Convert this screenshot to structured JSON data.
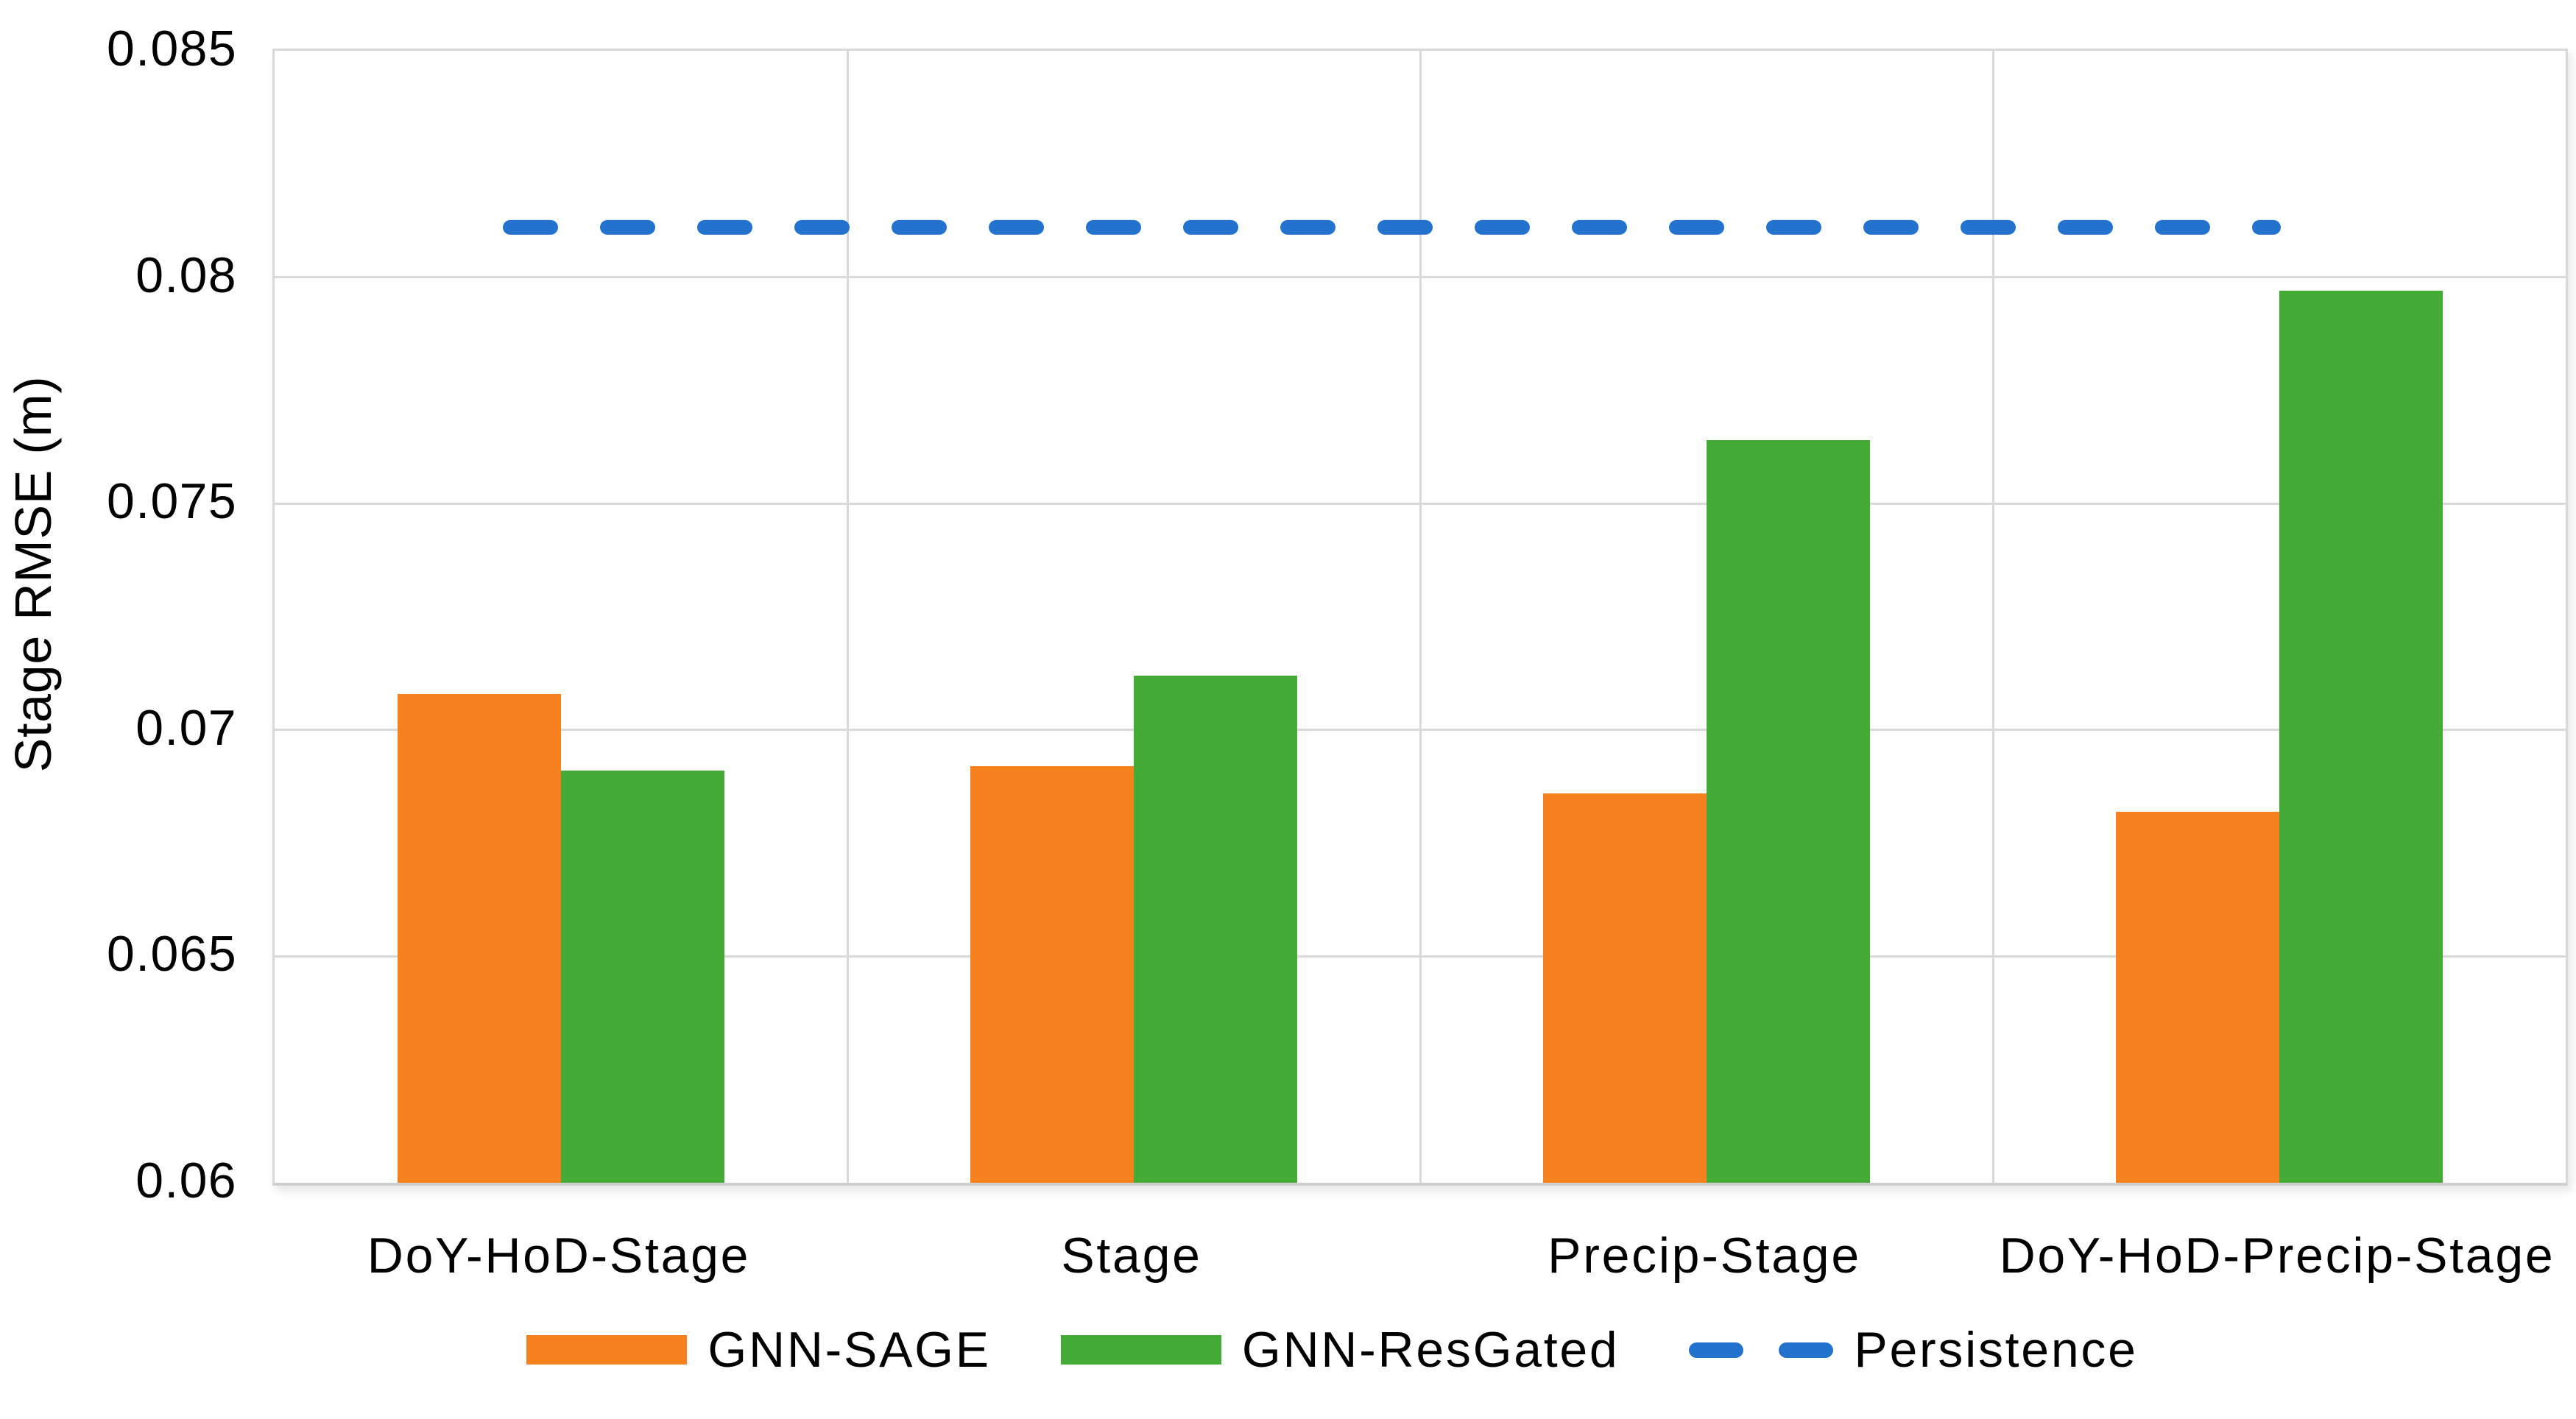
{
  "chart_data": {
    "type": "bar",
    "title": "",
    "categories": [
      "DoY-HoD-Stage",
      "Stage",
      "Precip-Stage",
      "DoY-HoD-Precip-Stage"
    ],
    "series": [
      {
        "name": "GNN-SAGE",
        "kind": "bar",
        "color": "#F6811F",
        "values": [
          0.0708,
          0.0692,
          0.0686,
          0.0682
        ]
      },
      {
        "name": "GNN-ResGated",
        "kind": "bar",
        "color": "#44AC36",
        "values": [
          0.0691,
          0.0712,
          0.0764,
          0.0797
        ]
      },
      {
        "name": "Persistence",
        "kind": "dashed_line",
        "color": "#2272CE",
        "value": 0.0811
      }
    ],
    "xlabel": "",
    "ylabel": "Stage RMSE (m)",
    "ylim": [
      0.06,
      0.085
    ],
    "yticks": [
      {
        "value": 0.085,
        "label": "0.085"
      },
      {
        "value": 0.08,
        "label": "0.08"
      },
      {
        "value": 0.075,
        "label": "0.075"
      },
      {
        "value": 0.07,
        "label": "0.07"
      },
      {
        "value": 0.065,
        "label": "0.065"
      },
      {
        "value": 0.06,
        "label": "0.06"
      }
    ],
    "grid": true,
    "legend_position": "bottom",
    "colors": {
      "grid": "#D9D9D9",
      "axis_text": "#000000",
      "background": "#FFFFFF"
    }
  }
}
